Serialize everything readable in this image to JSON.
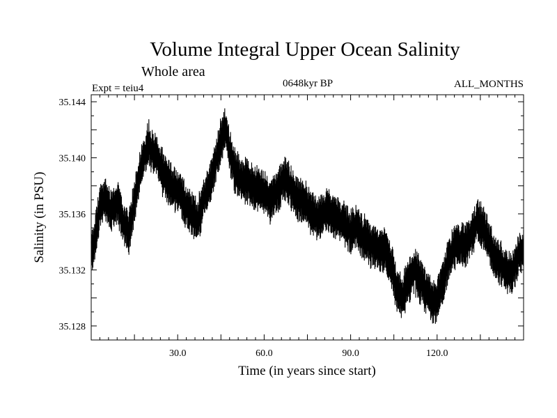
{
  "chart_data": {
    "type": "line",
    "title": "Volume Integral Upper Ocean Salinity",
    "subtitle": "Whole area",
    "experiment_label": "Expt = teiu4",
    "period_label": "0648kyr BP",
    "months_label": "ALL_MONTHS",
    "xlabel": "Time (in years since start)",
    "ylabel": "Salinity (in PSU)",
    "xlim": [
      0,
      150
    ],
    "ylim": [
      35.127,
      35.1445
    ],
    "x_ticks": [
      30,
      60,
      90,
      120
    ],
    "x_tick_labels": [
      "30.0",
      "60.0",
      "90.0",
      "120.0"
    ],
    "y_ticks": [
      35.128,
      35.132,
      35.136,
      35.14,
      35.144
    ],
    "y_tick_labels": [
      "35.128",
      "35.132",
      "35.136",
      "35.140",
      "35.144"
    ],
    "grid": false,
    "series": [
      {
        "name": "Salinity",
        "note": "monthly series; envelope centre (years, PSU) with ~0.0025 PSU monthly oscillation",
        "x": [
          0,
          1,
          3,
          5,
          7,
          9,
          11,
          13,
          15,
          17,
          19,
          20,
          21,
          23,
          25,
          28,
          31,
          33,
          35,
          37,
          39,
          41,
          43,
          45,
          46,
          47,
          48,
          50,
          52,
          54,
          56,
          58,
          60,
          62,
          64,
          66,
          68,
          70,
          72,
          74,
          76,
          78,
          80,
          82,
          84,
          86,
          88,
          90,
          92,
          94,
          96,
          98,
          100,
          102,
          104,
          106,
          108,
          110,
          112,
          114,
          116,
          118,
          120,
          122,
          124,
          126,
          128,
          130,
          132,
          134,
          136,
          138,
          140,
          142,
          144,
          146,
          148,
          150
        ],
        "values": [
          35.133,
          35.134,
          35.1365,
          35.137,
          35.1362,
          35.1368,
          35.1355,
          35.1345,
          35.137,
          35.139,
          35.1405,
          35.1412,
          35.1405,
          35.14,
          35.1388,
          35.138,
          35.1375,
          35.1365,
          35.136,
          35.1355,
          35.137,
          35.138,
          35.1395,
          35.1412,
          35.142,
          35.1418,
          35.1405,
          35.139,
          35.1385,
          35.1383,
          35.138,
          35.1378,
          35.1375,
          35.137,
          35.1375,
          35.1382,
          35.1385,
          35.1375,
          35.137,
          35.1368,
          35.1362,
          35.1357,
          35.1358,
          35.1362,
          35.136,
          35.1355,
          35.1352,
          35.1347,
          35.135,
          35.1345,
          35.134,
          35.1337,
          35.1333,
          35.1335,
          35.1325,
          35.1305,
          35.13,
          35.1312,
          35.132,
          35.1313,
          35.1305,
          35.13,
          35.1297,
          35.1312,
          35.1328,
          35.1335,
          35.134,
          35.1337,
          35.1345,
          35.1355,
          35.135,
          35.134,
          35.1328,
          35.1325,
          35.1318,
          35.1317,
          35.133,
          35.1335
        ]
      }
    ]
  }
}
